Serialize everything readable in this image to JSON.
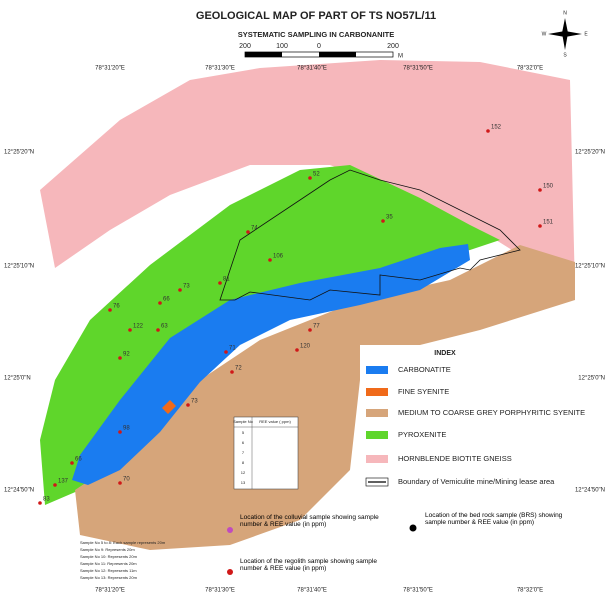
{
  "header": {
    "title": "GEOLOGICAL MAP OF PART OF TS NO57L/11",
    "subtitle": "SYSTEMATIC SAMPLING IN CARBONANITE"
  },
  "scale": {
    "labels": [
      "200",
      "100",
      "0",
      "200"
    ],
    "unit": "M"
  },
  "coordinates": {
    "longitudes": [
      "78°31'20\"E",
      "78°31'30\"E",
      "78°31'40\"E",
      "78°31'50\"E",
      "78°32'0\"E"
    ],
    "latitudes": [
      "12°25'20\"N",
      "12°25'10\"N",
      "12°25'0\"N",
      "12°24'50\"N"
    ]
  },
  "compass": [
    "N",
    "E",
    "S",
    "W"
  ],
  "index": {
    "title": "INDEX",
    "items": [
      "CARBONATITE",
      "FINE SYENITE",
      "MEDIUM TO COARSE GREY PORPHYRITIC SYENITE",
      "PYROXENITE",
      "HORNBLENDE BIOTITE GNEISS",
      "Boundary of Vemiculite mine/Mining lease area"
    ]
  },
  "sample_legend": {
    "colluvial": "Location of the colluvial sample showing sample number & REE value (in ppm)",
    "bedrock": "Location of the bed rock sample (BRS) showing sample number & REE value (in ppm)",
    "regolith": "Location of the regolith sample showing sample number & REE value (in ppm)"
  },
  "table": {
    "headers": [
      "Sample No",
      "REE value ( ppm)"
    ],
    "rows": [
      "5",
      "6",
      "7",
      "8",
      "12",
      "13"
    ]
  },
  "notes": [
    "Sample No 5 to 8: Each sample represents 20m",
    "Sample No 9: Represents 20m",
    "Sample No 10: Represents 20m",
    "Sample No 11: Represents 20m",
    "Sample No 12: Represents 11m",
    "Sample No 13: Represents 20m"
  ],
  "samples": [
    "152",
    "150",
    "151",
    "52",
    "35",
    "106",
    "81",
    "74",
    "73",
    "66",
    "76",
    "63",
    "122",
    "92",
    "71",
    "72",
    "73",
    "77",
    "120",
    "98",
    "66",
    "137",
    "70",
    "83"
  ]
}
